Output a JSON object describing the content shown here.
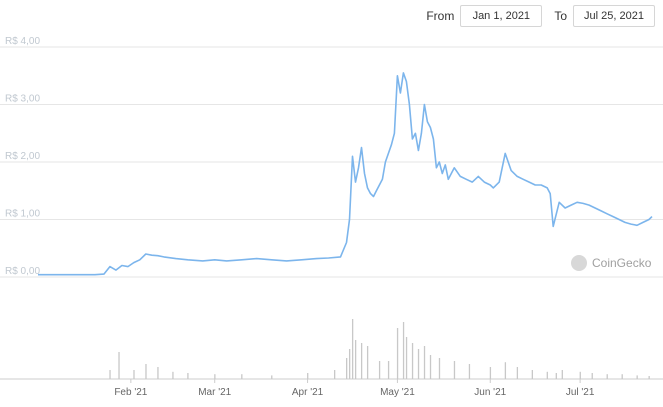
{
  "date_range": {
    "from_label": "From",
    "from_value": "Jan 1, 2021",
    "to_label": "To",
    "to_value": "Jul 25, 2021"
  },
  "watermark": {
    "text": "CoinGecko",
    "icon": "coingecko-logo-icon"
  },
  "colors": {
    "line": "#7cb5ec",
    "grid": "#e6e6e6",
    "volume": "#c8c8c8"
  },
  "chart_data": {
    "type": "line",
    "title": "",
    "xlabel": "",
    "ylabel": "",
    "y_tick_labels": [
      "R$ 0,00",
      "R$ 1,00",
      "R$ 2,00",
      "R$ 3,00",
      "R$ 4,00"
    ],
    "y_ticks": [
      0,
      1,
      2,
      3,
      4
    ],
    "ylim": [
      0,
      4
    ],
    "x_tick_labels": [
      "Feb '21",
      "Mar '21",
      "Apr '21",
      "May '21",
      "Jun '21",
      "Jul '21"
    ],
    "x_ticks": [
      "2021-02-01",
      "2021-03-01",
      "2021-04-01",
      "2021-05-01",
      "2021-06-01",
      "2021-07-01"
    ],
    "xlim": [
      "2021-01-01",
      "2021-07-25"
    ],
    "grid": true,
    "legend": "none",
    "series": [
      {
        "x": [
          "2021-01-01",
          "2021-01-10",
          "2021-01-20",
          "2021-01-23",
          "2021-01-25",
          "2021-01-27",
          "2021-01-29",
          "2021-01-31",
          "2021-02-02",
          "2021-02-04",
          "2021-02-06",
          "2021-02-08",
          "2021-02-10",
          "2021-02-12",
          "2021-02-16",
          "2021-02-20",
          "2021-02-25",
          "2021-03-01",
          "2021-03-05",
          "2021-03-10",
          "2021-03-15",
          "2021-03-20",
          "2021-03-25",
          "2021-03-30",
          "2021-04-04",
          "2021-04-08",
          "2021-04-12",
          "2021-04-14",
          "2021-04-15",
          "2021-04-16",
          "2021-04-17",
          "2021-04-18",
          "2021-04-19",
          "2021-04-20",
          "2021-04-21",
          "2021-04-22",
          "2021-04-23",
          "2021-04-24",
          "2021-04-25",
          "2021-04-26",
          "2021-04-27",
          "2021-04-28",
          "2021-04-29",
          "2021-04-30",
          "2021-05-01",
          "2021-05-02",
          "2021-05-03",
          "2021-05-04",
          "2021-05-05",
          "2021-05-06",
          "2021-05-07",
          "2021-05-08",
          "2021-05-09",
          "2021-05-10",
          "2021-05-11",
          "2021-05-12",
          "2021-05-13",
          "2021-05-14",
          "2021-05-15",
          "2021-05-16",
          "2021-05-17",
          "2021-05-18",
          "2021-05-19",
          "2021-05-20",
          "2021-05-22",
          "2021-05-24",
          "2021-05-26",
          "2021-05-28",
          "2021-05-30",
          "2021-06-01",
          "2021-06-02",
          "2021-06-04",
          "2021-06-06",
          "2021-06-08",
          "2021-06-10",
          "2021-06-12",
          "2021-06-14",
          "2021-06-16",
          "2021-06-18",
          "2021-06-20",
          "2021-06-21",
          "2021-06-22",
          "2021-06-24",
          "2021-06-26",
          "2021-06-28",
          "2021-06-30",
          "2021-07-02",
          "2021-07-04",
          "2021-07-06",
          "2021-07-08",
          "2021-07-10",
          "2021-07-12",
          "2021-07-14",
          "2021-07-16",
          "2021-07-18",
          "2021-07-20",
          "2021-07-22",
          "2021-07-24",
          "2021-07-25"
        ],
        "y": [
          0.04,
          0.04,
          0.04,
          0.05,
          0.18,
          0.12,
          0.2,
          0.18,
          0.25,
          0.3,
          0.4,
          0.38,
          0.37,
          0.35,
          0.32,
          0.3,
          0.28,
          0.3,
          0.28,
          0.3,
          0.32,
          0.3,
          0.28,
          0.3,
          0.32,
          0.33,
          0.35,
          0.6,
          1.0,
          2.1,
          1.65,
          1.9,
          2.25,
          1.8,
          1.55,
          1.45,
          1.4,
          1.5,
          1.6,
          1.7,
          2.0,
          2.15,
          2.3,
          2.5,
          3.5,
          3.2,
          3.55,
          3.4,
          3.0,
          2.4,
          2.5,
          2.2,
          2.5,
          3.0,
          2.7,
          2.6,
          2.4,
          1.9,
          2.0,
          1.8,
          1.95,
          1.7,
          1.8,
          1.9,
          1.75,
          1.7,
          1.65,
          1.75,
          1.65,
          1.6,
          1.55,
          1.65,
          2.15,
          1.85,
          1.75,
          1.7,
          1.65,
          1.6,
          1.6,
          1.55,
          1.45,
          0.88,
          1.3,
          1.2,
          1.25,
          1.3,
          1.28,
          1.25,
          1.2,
          1.15,
          1.1,
          1.05,
          1.0,
          0.95,
          0.92,
          0.9,
          0.95,
          1.0,
          1.05
        ]
      }
    ],
    "volume": {
      "x": [
        "2021-01-25",
        "2021-01-28",
        "2021-02-02",
        "2021-02-06",
        "2021-02-10",
        "2021-02-15",
        "2021-02-20",
        "2021-03-01",
        "2021-03-10",
        "2021-03-20",
        "2021-04-01",
        "2021-04-10",
        "2021-04-14",
        "2021-04-15",
        "2021-04-16",
        "2021-04-17",
        "2021-04-19",
        "2021-04-21",
        "2021-04-25",
        "2021-04-28",
        "2021-05-01",
        "2021-05-03",
        "2021-05-04",
        "2021-05-06",
        "2021-05-08",
        "2021-05-10",
        "2021-05-12",
        "2021-05-15",
        "2021-05-20",
        "2021-05-25",
        "2021-06-01",
        "2021-06-06",
        "2021-06-10",
        "2021-06-15",
        "2021-06-20",
        "2021-06-23",
        "2021-06-25",
        "2021-07-01",
        "2021-07-05",
        "2021-07-10",
        "2021-07-15",
        "2021-07-20",
        "2021-07-24"
      ],
      "y": [
        0.15,
        0.45,
        0.15,
        0.25,
        0.2,
        0.12,
        0.1,
        0.08,
        0.08,
        0.06,
        0.1,
        0.15,
        0.35,
        0.5,
        1.0,
        0.65,
        0.6,
        0.55,
        0.3,
        0.3,
        0.85,
        0.95,
        0.7,
        0.6,
        0.5,
        0.55,
        0.4,
        0.35,
        0.3,
        0.25,
        0.2,
        0.28,
        0.2,
        0.15,
        0.12,
        0.1,
        0.15,
        0.12,
        0.1,
        0.08,
        0.08,
        0.06,
        0.05
      ]
    }
  }
}
